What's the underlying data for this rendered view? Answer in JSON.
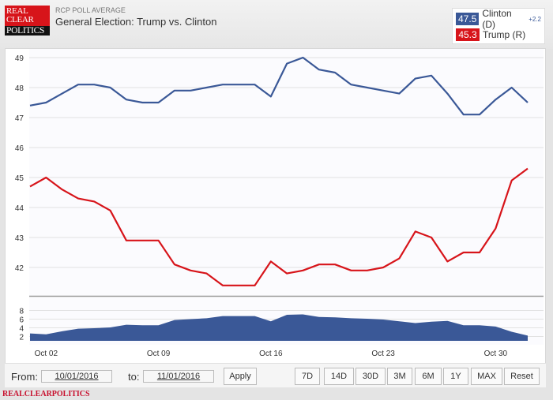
{
  "header": {
    "logo": [
      "REAL",
      "CLEAR",
      "POLITICS"
    ],
    "subtitle": "RCP POLL AVERAGE",
    "title": "General Election: Trump vs. Clinton"
  },
  "legend": [
    {
      "value": "47.5",
      "label": "Clinton (D)",
      "change": "+2.2",
      "color": "#3a5897"
    },
    {
      "value": "45.3",
      "label": "Trump (R)",
      "change": "",
      "color": "#d7141a"
    }
  ],
  "chart_data": {
    "type": "line",
    "title": "General Election: Trump vs. Clinton",
    "x": [
      "10/01",
      "10/02",
      "10/03",
      "10/04",
      "10/05",
      "10/06",
      "10/07",
      "10/08",
      "10/09",
      "10/10",
      "10/11",
      "10/12",
      "10/13",
      "10/14",
      "10/15",
      "10/16",
      "10/17",
      "10/18",
      "10/19",
      "10/20",
      "10/21",
      "10/22",
      "10/23",
      "10/24",
      "10/25",
      "10/26",
      "10/27",
      "10/28",
      "10/29",
      "10/30",
      "10/31",
      "11/01"
    ],
    "series": [
      {
        "name": "Clinton (D)",
        "color": "#3a5897",
        "values": [
          47.4,
          47.5,
          47.8,
          48.1,
          48.1,
          48.0,
          47.6,
          47.5,
          47.5,
          47.9,
          47.9,
          48.0,
          48.1,
          48.1,
          48.1,
          47.7,
          48.8,
          49.0,
          48.6,
          48.5,
          48.1,
          48.0,
          47.9,
          47.8,
          48.3,
          48.4,
          47.8,
          47.1,
          47.1,
          47.6,
          48.0,
          47.5
        ]
      },
      {
        "name": "Trump (R)",
        "color": "#d7141a",
        "values": [
          44.7,
          45.0,
          44.6,
          44.3,
          44.2,
          43.9,
          42.9,
          42.9,
          42.9,
          42.1,
          41.9,
          41.8,
          41.4,
          41.4,
          41.4,
          42.2,
          41.8,
          41.9,
          42.1,
          42.1,
          41.9,
          41.9,
          42.0,
          42.3,
          43.2,
          43.0,
          42.2,
          42.5,
          42.5,
          43.3,
          44.9,
          45.3
        ]
      }
    ],
    "ylim": [
      41,
      49.5
    ],
    "yticks": [
      "42",
      "43",
      "44",
      "45",
      "46",
      "47",
      "48",
      "49"
    ],
    "spread": {
      "type": "area",
      "ylim": [
        1,
        9
      ],
      "yticks": [
        "2",
        "4",
        "6",
        "8"
      ]
    },
    "xticks": [
      {
        "label": "Oct 02",
        "index": 1
      },
      {
        "label": "Oct 09",
        "index": 8
      },
      {
        "label": "Oct 16",
        "index": 15
      },
      {
        "label": "Oct 23",
        "index": 22
      },
      {
        "label": "Oct 30",
        "index": 29
      }
    ]
  },
  "controls": {
    "from_label": "From:",
    "from_value": "10/01/2016",
    "to_label": "to:",
    "to_value": "11/01/2016",
    "apply": "Apply",
    "ranges": [
      "7D",
      "14D",
      "30D",
      "3M",
      "6M",
      "1Y",
      "MAX",
      "Reset"
    ]
  },
  "footer": "REALCLEARPOLITICS"
}
